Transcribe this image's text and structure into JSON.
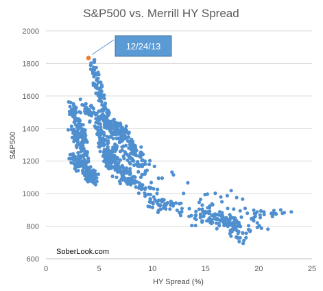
{
  "chart_data": {
    "type": "scatter",
    "title": "S&P500 vs. Merrill HY Spread",
    "xlabel": "HY Spread (%)",
    "ylabel": "S&P500",
    "xlim": [
      0,
      25
    ],
    "ylim": [
      600,
      2000
    ],
    "x_ticks": [
      0,
      5,
      10,
      15,
      20,
      25
    ],
    "y_ticks": [
      600,
      800,
      1000,
      1200,
      1400,
      1600,
      1800,
      2000
    ],
    "grid": "horizontal",
    "legend": "none",
    "series_color": "#4f8fcf",
    "highlight": {
      "label": "12/24/13",
      "x": 4.0,
      "y": 1833,
      "color": "#ed7d31"
    },
    "watermark": "SoberLook.com",
    "clusters": [
      {
        "x0": 4.4,
        "y0": 1790,
        "x1": 6.0,
        "y1": 1380,
        "n": 110,
        "sx": 0.2,
        "sy": 20
      },
      {
        "x0": 2.4,
        "y0": 1540,
        "x1": 3.7,
        "y1": 1330,
        "n": 90,
        "sx": 0.18,
        "sy": 25
      },
      {
        "x0": 2.5,
        "y0": 1400,
        "x1": 3.8,
        "y1": 1220,
        "n": 70,
        "sx": 0.2,
        "sy": 18
      },
      {
        "x0": 2.4,
        "y0": 1240,
        "x1": 4.5,
        "y1": 1090,
        "n": 140,
        "sx": 0.3,
        "sy": 25
      },
      {
        "x0": 3.3,
        "y0": 1550,
        "x1": 5.0,
        "y1": 1450,
        "n": 40,
        "sx": 0.3,
        "sy": 25
      },
      {
        "x0": 4.8,
        "y0": 1500,
        "x1": 7.5,
        "y1": 1330,
        "n": 90,
        "sx": 0.3,
        "sy": 25
      },
      {
        "x0": 5.0,
        "y0": 1380,
        "x1": 6.5,
        "y1": 1200,
        "n": 80,
        "sx": 0.25,
        "sy": 30
      },
      {
        "x0": 5.5,
        "y0": 1230,
        "x1": 8.0,
        "y1": 1080,
        "n": 110,
        "sx": 0.35,
        "sy": 25
      },
      {
        "x0": 6.5,
        "y0": 1420,
        "x1": 9.0,
        "y1": 1200,
        "n": 100,
        "sx": 0.35,
        "sy": 35
      },
      {
        "x0": 7.0,
        "y0": 1250,
        "x1": 9.5,
        "y1": 1150,
        "n": 40,
        "sx": 0.4,
        "sy": 30
      },
      {
        "x0": 7.5,
        "y0": 1120,
        "x1": 10.0,
        "y1": 980,
        "n": 40,
        "sx": 0.4,
        "sy": 25
      },
      {
        "x0": 10.0,
        "y0": 950,
        "x1": 13.0,
        "y1": 900,
        "n": 45,
        "sx": 0.5,
        "sy": 18
      },
      {
        "x0": 10.5,
        "y0": 1100,
        "x1": 14.5,
        "y1": 950,
        "n": 12,
        "sx": 0.8,
        "sy": 40
      },
      {
        "x0": 14.0,
        "y0": 880,
        "x1": 18.0,
        "y1": 820,
        "n": 90,
        "sx": 0.7,
        "sy": 25
      },
      {
        "x0": 16.0,
        "y0": 860,
        "x1": 18.5,
        "y1": 720,
        "n": 45,
        "sx": 0.5,
        "sy": 25
      },
      {
        "x0": 15.0,
        "y0": 1000,
        "x1": 18.0,
        "y1": 900,
        "n": 20,
        "sx": 0.8,
        "sy": 30
      },
      {
        "x0": 19.5,
        "y0": 880,
        "x1": 21.8,
        "y1": 880,
        "n": 25,
        "sx": 0.6,
        "sy": 20
      },
      {
        "x0": 18.5,
        "y0": 830,
        "x1": 20.5,
        "y1": 780,
        "n": 12,
        "sx": 0.5,
        "sy": 25
      }
    ]
  }
}
